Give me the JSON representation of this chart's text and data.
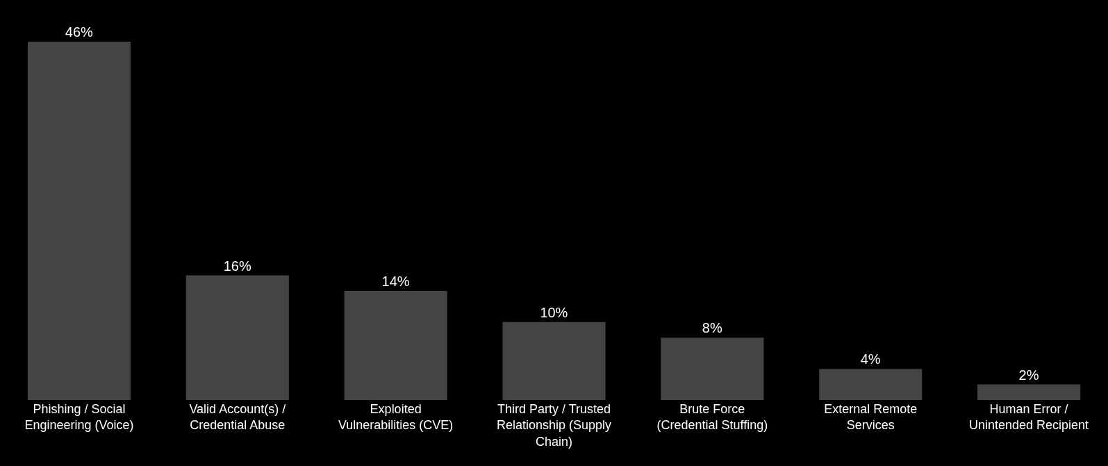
{
  "chart_data": {
    "type": "bar",
    "categories": [
      "Phishing / Social Engineering (Voice)",
      "Valid Account(s) / Credential Abuse",
      "Exploited Vulnerabilities (CVE)",
      "Third Party / Trusted Relationship (Supply Chain)",
      "Brute Force (Credential Stuffing)",
      "External Remote Services",
      "Human Error / Unintended Recipient"
    ],
    "values": [
      46,
      16,
      14,
      10,
      8,
      4,
      2
    ],
    "value_labels": [
      "46%",
      "16%",
      "14%",
      "10%",
      "8%",
      "4%",
      "2%"
    ],
    "color": "#444444"
  }
}
